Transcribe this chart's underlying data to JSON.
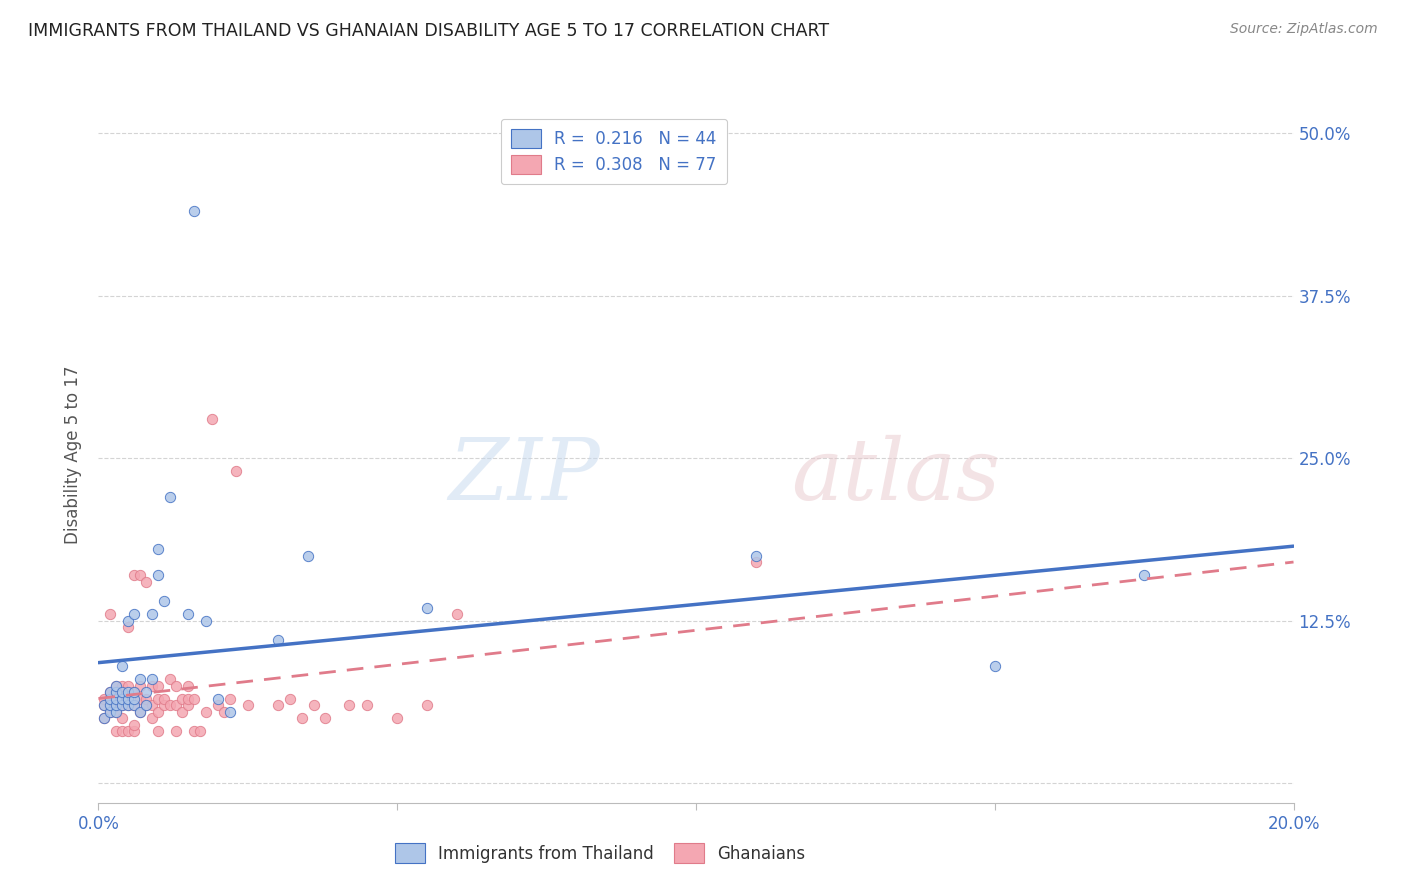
{
  "title": "IMMIGRANTS FROM THAILAND VS GHANAIAN DISABILITY AGE 5 TO 17 CORRELATION CHART",
  "source": "Source: ZipAtlas.com",
  "ylabel": "Disability Age 5 to 17",
  "xlim": [
    0.0,
    0.2
  ],
  "ylim": [
    -0.015,
    0.52
  ],
  "yticks": [
    0.0,
    0.125,
    0.25,
    0.375,
    0.5
  ],
  "ytick_labels": [
    "",
    "12.5%",
    "25.0%",
    "37.5%",
    "50.0%"
  ],
  "xticks": [
    0.0,
    0.05,
    0.1,
    0.15,
    0.2
  ],
  "xtick_labels": [
    "0.0%",
    "",
    "",
    "",
    "20.0%"
  ],
  "legend_entries": [
    {
      "label": "R =  0.216   N = 44",
      "color": "#aec6e8"
    },
    {
      "label": "R =  0.308   N = 77",
      "color": "#f4a7b2"
    }
  ],
  "series1_color": "#aec6e8",
  "series2_color": "#f4a7b2",
  "trendline1_color": "#4472c4",
  "trendline2_color": "#e07b8a",
  "background_color": "#ffffff",
  "grid_color": "#d0d0d0",
  "title_color": "#222222",
  "axis_label_color": "#555555",
  "legend_label1": "Immigrants from Thailand",
  "legend_label2": "Ghanaians",
  "series1_x": [
    0.001,
    0.001,
    0.002,
    0.002,
    0.002,
    0.002,
    0.003,
    0.003,
    0.003,
    0.003,
    0.003,
    0.004,
    0.004,
    0.004,
    0.004,
    0.005,
    0.005,
    0.005,
    0.005,
    0.006,
    0.006,
    0.006,
    0.006,
    0.007,
    0.007,
    0.008,
    0.008,
    0.009,
    0.009,
    0.01,
    0.01,
    0.011,
    0.012,
    0.015,
    0.016,
    0.018,
    0.02,
    0.022,
    0.03,
    0.035,
    0.055,
    0.11,
    0.15,
    0.175
  ],
  "series1_y": [
    0.05,
    0.06,
    0.055,
    0.06,
    0.065,
    0.07,
    0.055,
    0.06,
    0.065,
    0.07,
    0.075,
    0.06,
    0.065,
    0.07,
    0.09,
    0.06,
    0.065,
    0.07,
    0.125,
    0.06,
    0.065,
    0.07,
    0.13,
    0.055,
    0.08,
    0.06,
    0.07,
    0.08,
    0.13,
    0.16,
    0.18,
    0.14,
    0.22,
    0.13,
    0.44,
    0.125,
    0.065,
    0.055,
    0.11,
    0.175,
    0.135,
    0.175,
    0.09,
    0.16
  ],
  "series2_x": [
    0.001,
    0.001,
    0.001,
    0.002,
    0.002,
    0.002,
    0.002,
    0.002,
    0.003,
    0.003,
    0.003,
    0.003,
    0.003,
    0.003,
    0.004,
    0.004,
    0.004,
    0.004,
    0.004,
    0.004,
    0.005,
    0.005,
    0.005,
    0.005,
    0.005,
    0.006,
    0.006,
    0.006,
    0.006,
    0.006,
    0.007,
    0.007,
    0.007,
    0.007,
    0.008,
    0.008,
    0.008,
    0.009,
    0.009,
    0.009,
    0.01,
    0.01,
    0.01,
    0.01,
    0.011,
    0.011,
    0.012,
    0.012,
    0.013,
    0.013,
    0.013,
    0.014,
    0.014,
    0.015,
    0.015,
    0.015,
    0.016,
    0.016,
    0.017,
    0.018,
    0.019,
    0.02,
    0.021,
    0.022,
    0.023,
    0.025,
    0.03,
    0.032,
    0.034,
    0.036,
    0.038,
    0.042,
    0.045,
    0.05,
    0.055,
    0.06,
    0.11
  ],
  "series2_y": [
    0.05,
    0.06,
    0.065,
    0.055,
    0.06,
    0.065,
    0.07,
    0.13,
    0.04,
    0.055,
    0.06,
    0.065,
    0.07,
    0.075,
    0.04,
    0.05,
    0.06,
    0.065,
    0.07,
    0.075,
    0.04,
    0.06,
    0.065,
    0.075,
    0.12,
    0.04,
    0.045,
    0.06,
    0.07,
    0.16,
    0.055,
    0.065,
    0.075,
    0.16,
    0.06,
    0.065,
    0.155,
    0.05,
    0.06,
    0.075,
    0.04,
    0.055,
    0.065,
    0.075,
    0.06,
    0.065,
    0.06,
    0.08,
    0.04,
    0.06,
    0.075,
    0.055,
    0.065,
    0.06,
    0.065,
    0.075,
    0.04,
    0.065,
    0.04,
    0.055,
    0.28,
    0.06,
    0.055,
    0.065,
    0.24,
    0.06,
    0.06,
    0.065,
    0.05,
    0.06,
    0.05,
    0.06,
    0.06,
    0.05,
    0.06,
    0.13,
    0.17
  ],
  "trendline1_intercept": 0.055,
  "trendline1_slope": 0.55,
  "trendline2_intercept": 0.043,
  "trendline2_slope": 0.85
}
